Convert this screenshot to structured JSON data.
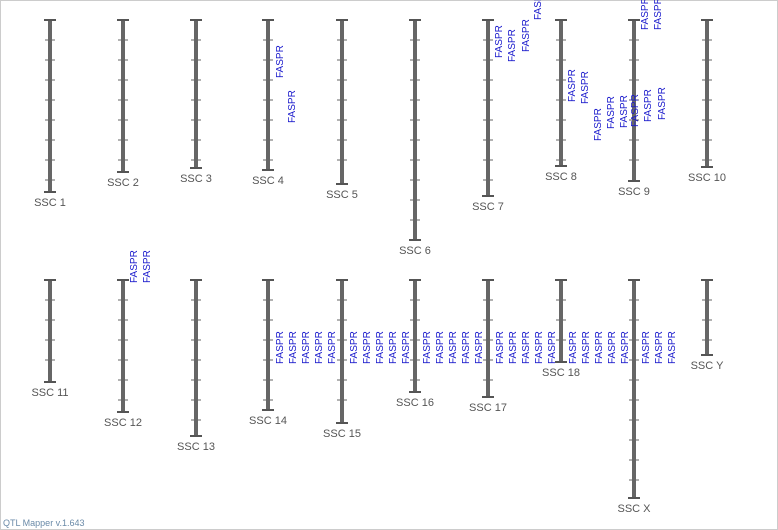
{
  "chromosomes": [
    {
      "label": "SSC 1",
      "qtls": []
    },
    {
      "label": "SSC 2",
      "qtls": []
    },
    {
      "label": "SSC 3",
      "qtls": []
    },
    {
      "label": "SSC 4",
      "qtls": [
        "FASPR",
        "FASPR"
      ]
    },
    {
      "label": "SSC 5",
      "qtls": []
    },
    {
      "label": "SSC 6",
      "qtls": []
    },
    {
      "label": "SSC 7",
      "qtls": [
        "FASPR",
        "FASPR",
        "FASPR",
        "FASPR"
      ]
    },
    {
      "label": "SSC 8",
      "qtls": [
        "FASPR",
        "FASPR",
        "FASPR",
        "FASPR",
        "FASPR"
      ]
    },
    {
      "label": "SSC 9",
      "qtls": [
        "FASPR",
        "FASPR",
        "FASPR",
        "FASPR",
        "FASPR"
      ]
    },
    {
      "label": "SSC 10",
      "qtls": []
    },
    {
      "label": "SSC 11",
      "qtls": []
    },
    {
      "label": "SSC 12",
      "qtls": [
        "FASPR",
        "FASPR"
      ]
    },
    {
      "label": "SSC 13",
      "qtls": []
    },
    {
      "label": "SSC 14",
      "qtls": [
        "FASPR",
        "FASPR",
        "FASPR",
        "FASPR",
        "FASPR"
      ]
    },
    {
      "label": "SSC 15",
      "qtls": [
        "FASPR",
        "FASPR",
        "FASPR",
        "FASPR",
        "FASPR"
      ]
    },
    {
      "label": "SSC 16",
      "qtls": [
        "FASPR",
        "FASPR",
        "FASPR",
        "FASPR",
        "FASPR"
      ]
    },
    {
      "label": "SSC 17",
      "qtls": [
        "FASPR",
        "FASPR",
        "FASPR",
        "FASPR",
        "FASPR"
      ]
    },
    {
      "label": "SSC 18",
      "qtls": [
        "FASPR",
        "FASPR",
        "FASPR",
        "FASPR",
        "FASPR"
      ]
    },
    {
      "label": "SSC X",
      "qtls": [
        "FASPR",
        "FASPR",
        "FASPR"
      ]
    },
    {
      "label": "SSC Y",
      "qtls": []
    }
  ],
  "footer": "QTL Mapper v.1.643"
}
